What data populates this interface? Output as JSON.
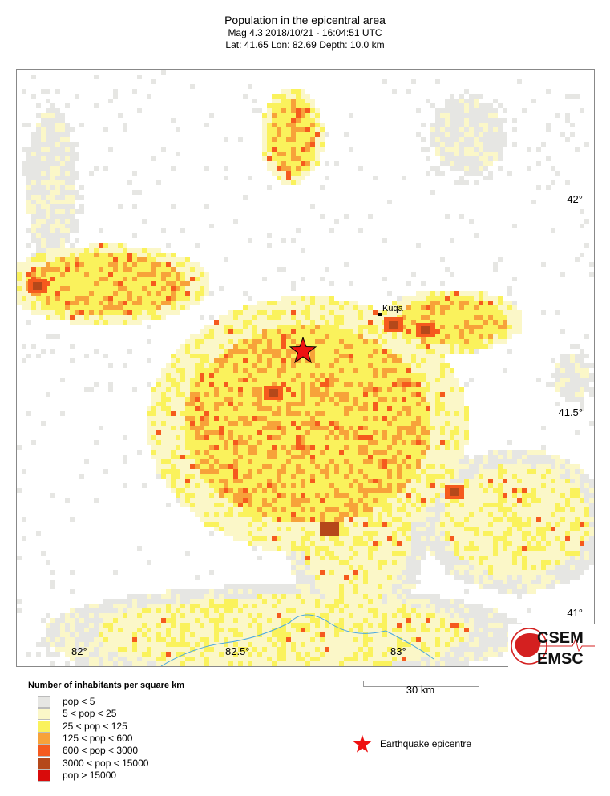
{
  "header": {
    "title": "Population in the epicentral area",
    "line2": "Mag 4.3  2018/10/21 - 16:04:51 UTC",
    "line3": "Lat: 41.65    Lon:  82.69     Depth:  10.0 km"
  },
  "map": {
    "lon_labels": [
      "82°",
      "82.5°",
      "83°"
    ],
    "lat_labels": [
      "42°",
      "41.5°",
      "41°"
    ],
    "city": "Kuqa",
    "river_color": "#4aa8e0"
  },
  "legend": {
    "title": "Number of inhabitants per square km",
    "items": [
      {
        "label": "pop < 5",
        "color": "#e6e6e3"
      },
      {
        "label": "5 < pop < 25",
        "color": "#fbf7c8"
      },
      {
        "label": "25 < pop < 125",
        "color": "#faf25c"
      },
      {
        "label": "125 < pop < 600",
        "color": "#f7a23a"
      },
      {
        "label": "600 < pop < 3000",
        "color": "#f55a1e"
      },
      {
        "label": "3000 < pop < 15000",
        "color": "#b5481a"
      },
      {
        "label": "pop > 15000",
        "color": "#d90b0b"
      }
    ]
  },
  "scale": {
    "label": "30 km"
  },
  "epicentre": {
    "label": "Earthquake epicentre",
    "color": "#ee1111"
  },
  "logo": {
    "line1": "CSEM",
    "line2": "EMSC"
  }
}
